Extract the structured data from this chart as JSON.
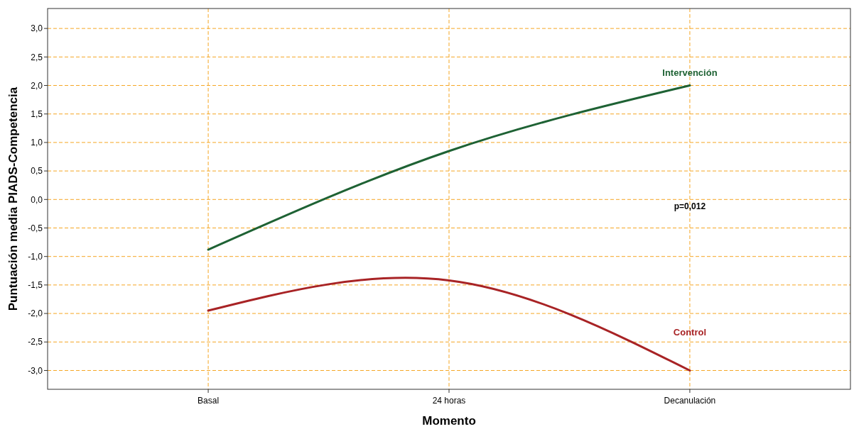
{
  "chart_data": {
    "type": "line",
    "xlabel": "Momento",
    "ylabel": "Puntuación media PIADS-Competencia",
    "categories": [
      "Basal",
      "24 horas",
      "Decanulación"
    ],
    "series": [
      {
        "name": "Intervención",
        "color": "#1e6234",
        "values": [
          -0.88,
          0.85,
          2.0
        ]
      },
      {
        "name": "Control",
        "color": "#a82325",
        "values": [
          -1.95,
          -1.42,
          -3.0
        ]
      }
    ],
    "ylim": [
      -3.33,
      3.35
    ],
    "yticks": [
      {
        "value": -3,
        "label": "-3,0"
      },
      {
        "value": -2.5,
        "label": "-2,5"
      },
      {
        "value": -2,
        "label": "-2,0"
      },
      {
        "value": -1.5,
        "label": "-1,5"
      },
      {
        "value": -1,
        "label": "-1,0"
      },
      {
        "value": -0.5,
        "label": "-0,5"
      },
      {
        "value": 0,
        "label": "0,0"
      },
      {
        "value": 0.5,
        "label": "0,5"
      },
      {
        "value": 1,
        "label": "1,0"
      },
      {
        "value": 1.5,
        "label": "1,5"
      },
      {
        "value": 2,
        "label": "2,0"
      },
      {
        "value": 2.5,
        "label": "2,5"
      },
      {
        "value": 3,
        "label": "3,0"
      }
    ],
    "grid": true,
    "legend": false,
    "marker": "none",
    "line_style": "solid",
    "annotations": [
      "p=0,012"
    ]
  }
}
